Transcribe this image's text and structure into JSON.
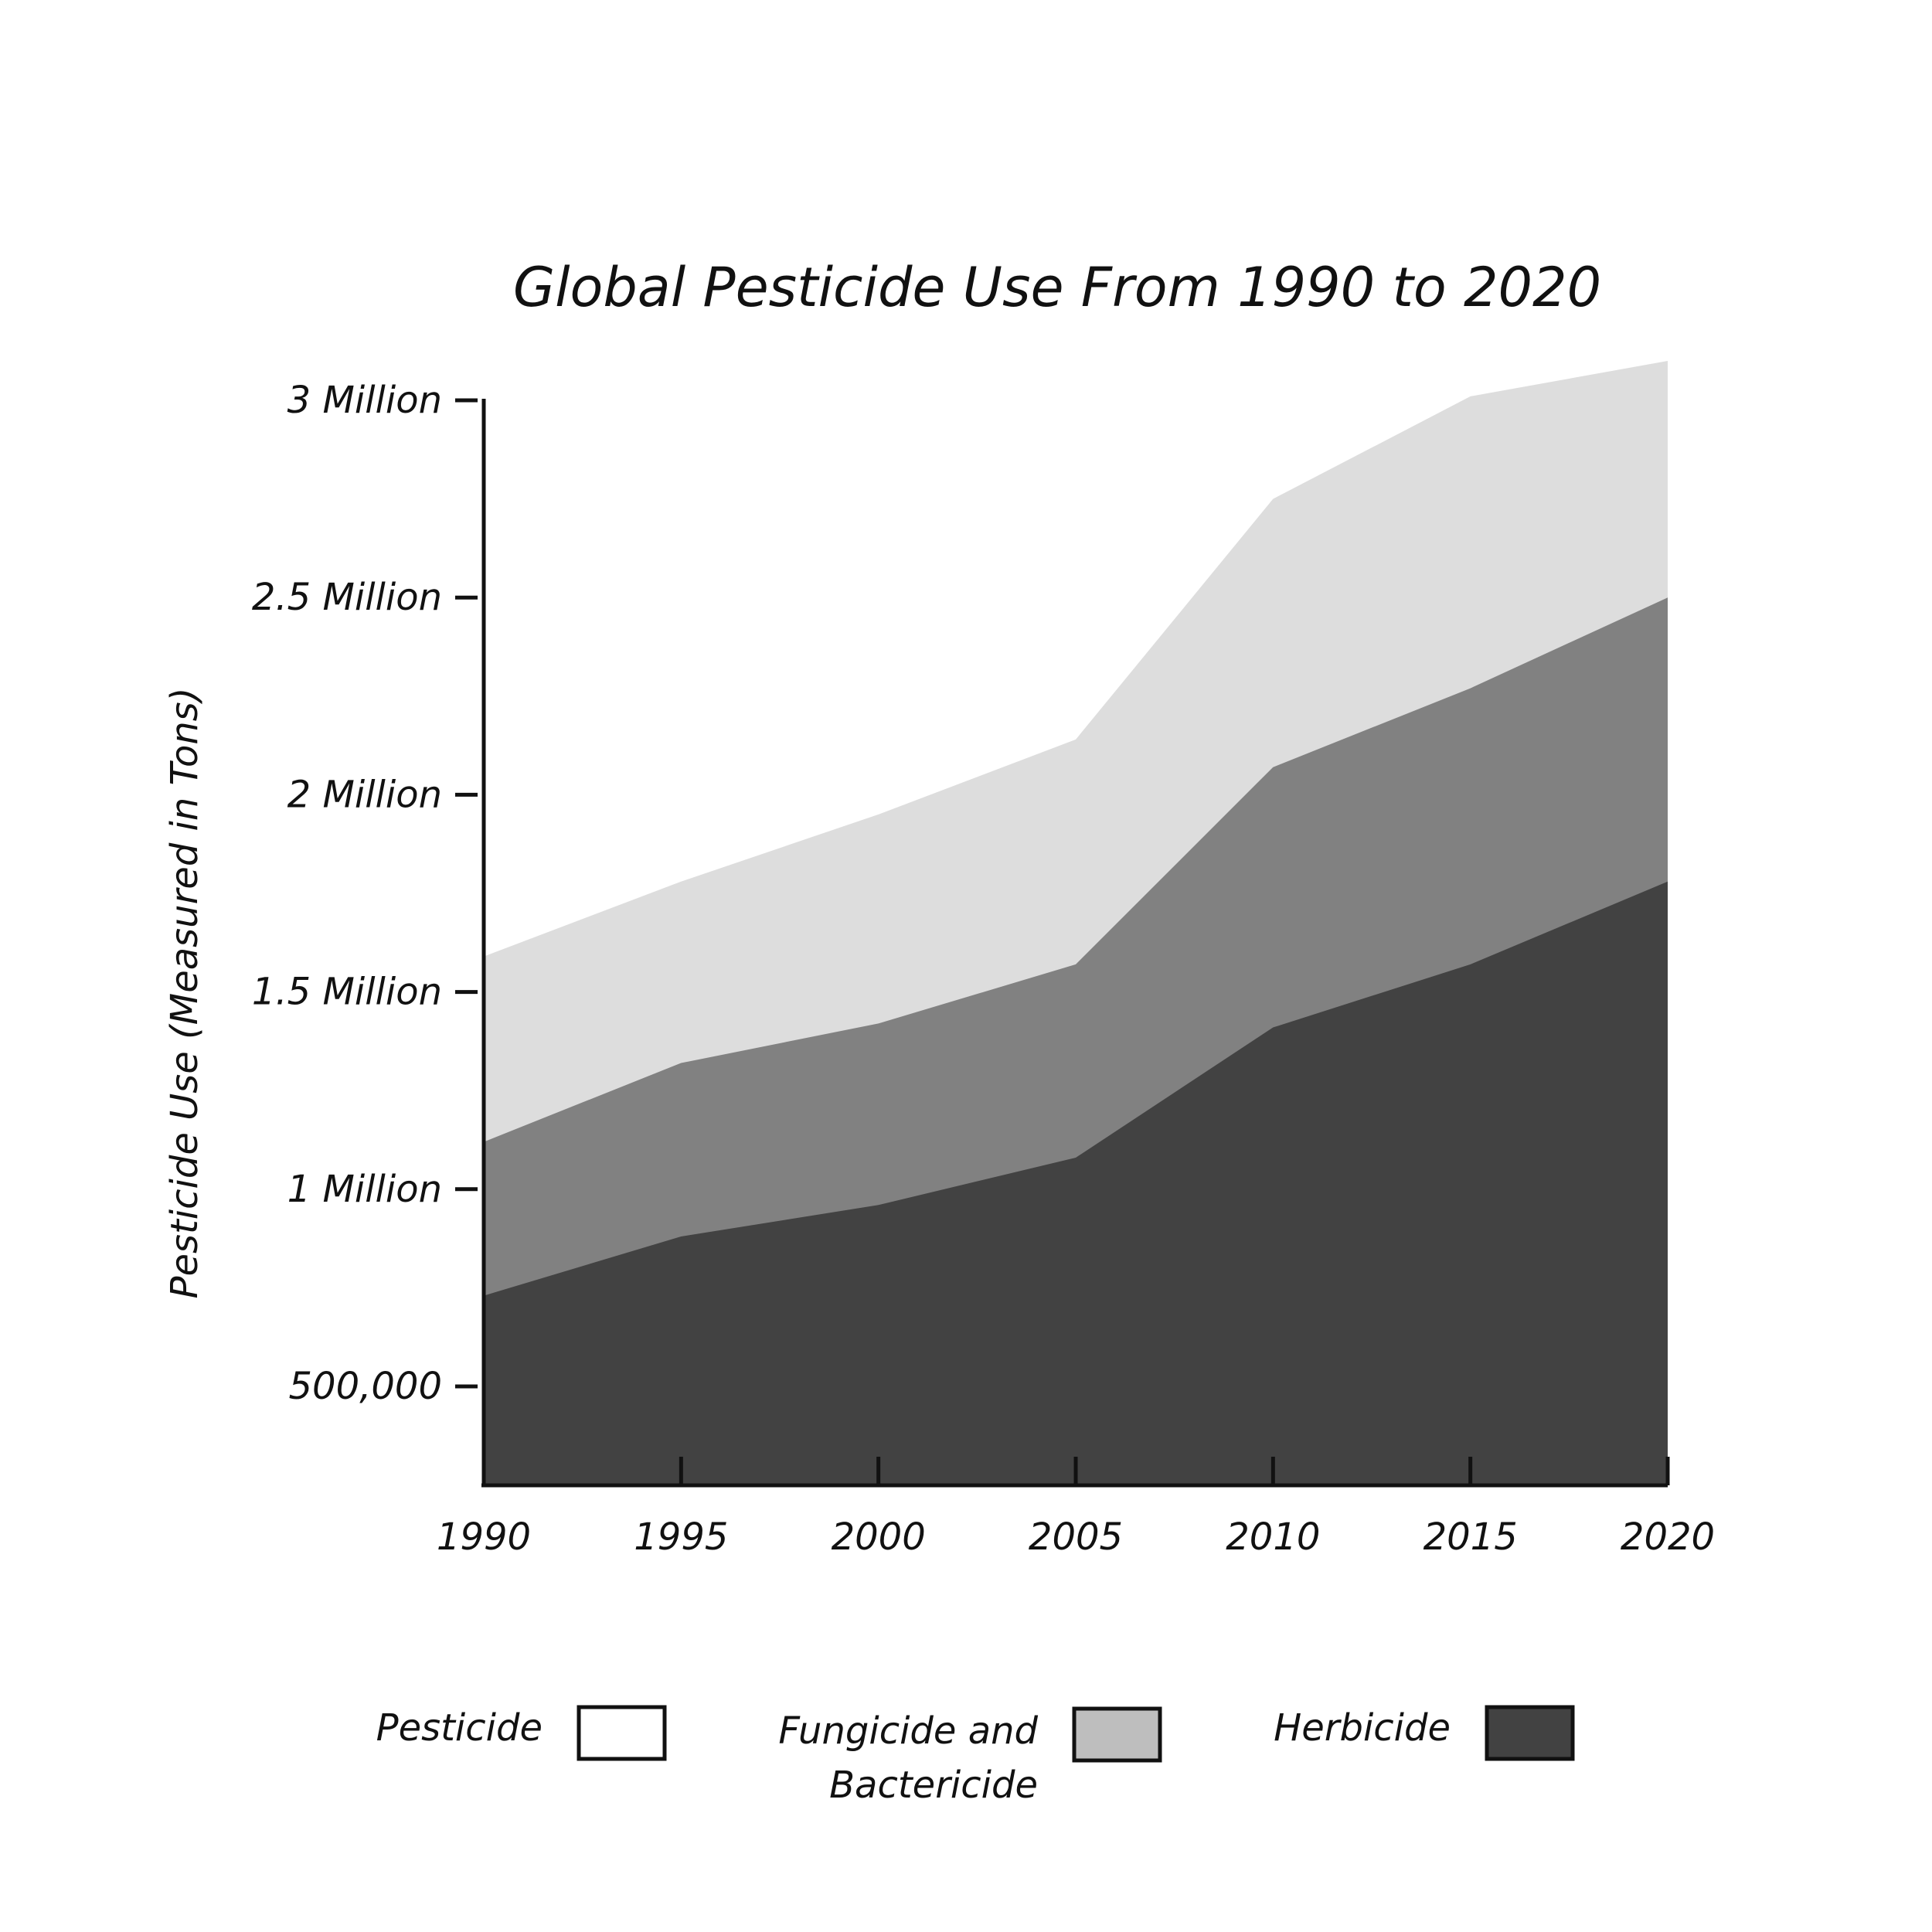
{
  "chart_data": {
    "type": "area",
    "stacked": true,
    "title": "Global Pesticide Use From 1990 to 2020",
    "xlabel": "",
    "ylabel": "Pesticide Use (Measured in Tons)",
    "x": [
      1990,
      1995,
      2000,
      2005,
      2010,
      2015,
      2020
    ],
    "x_tick_labels": [
      "1990",
      "1995",
      "2000",
      "2005",
      "2010",
      "2015",
      "2020"
    ],
    "ylim": [
      250000,
      3000000
    ],
    "y_ticks": [
      500000,
      1000000,
      1500000,
      2000000,
      2500000,
      3000000
    ],
    "y_tick_labels": [
      "500,000",
      "1 Million",
      "1.5 Million",
      "2 Million",
      "2.5 Million",
      "3 Million"
    ],
    "grid": false,
    "legend_position": "bottom",
    "series": [
      {
        "name": "Herbicide",
        "legend_label": "Herbicide",
        "cumulative_top": [
          730000,
          880000,
          960000,
          1080000,
          1410000,
          1570000,
          1780000
        ],
        "area_color": "#424242",
        "swatch_color": "#424242"
      },
      {
        "name": "Fungicide and Bactericide",
        "legend_label_lines": [
          "Fungicide and",
          "Bactericide"
        ],
        "cumulative_top": [
          1120000,
          1320000,
          1420000,
          1570000,
          2070000,
          2270000,
          2500000
        ],
        "area_color": "#818181",
        "swatch_color": "#bebebe"
      },
      {
        "name": "Pesticide",
        "legend_label": "Pesticide",
        "cumulative_top": [
          1590000,
          1780000,
          1950000,
          2140000,
          2750000,
          3010000,
          3100000
        ],
        "area_color": "#dddddd",
        "swatch_color": "#ffffff"
      }
    ]
  }
}
